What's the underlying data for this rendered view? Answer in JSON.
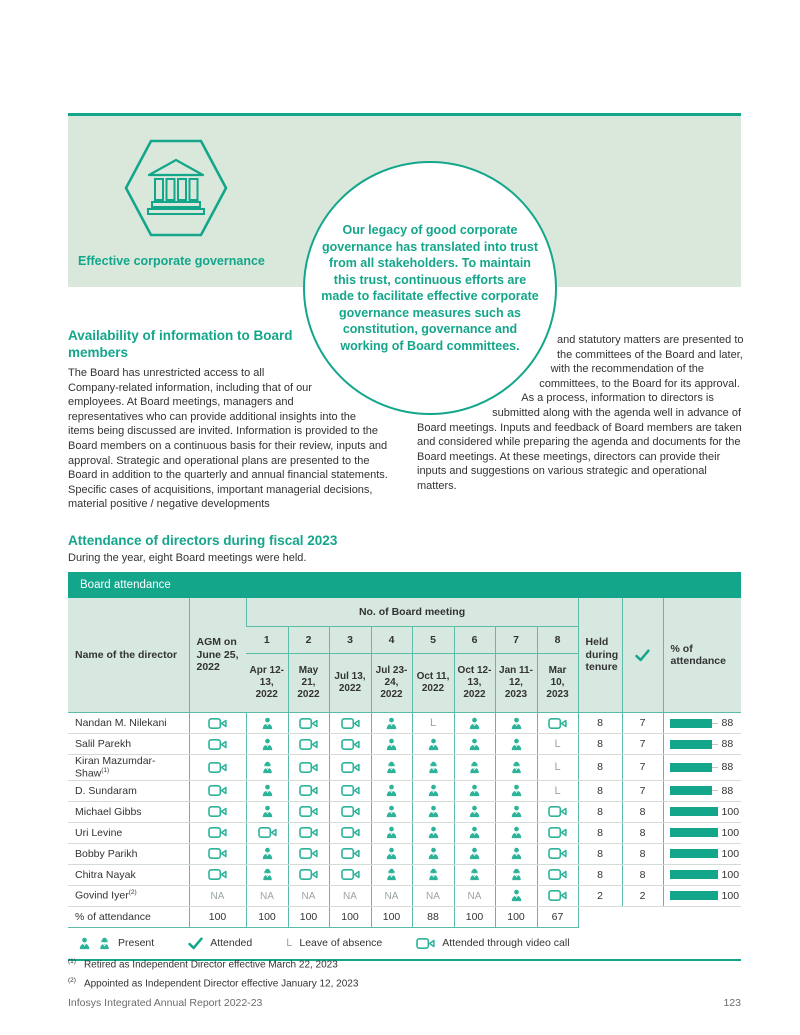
{
  "colors": {
    "accent": "#14a68b",
    "icon_teal": "#2cb39a",
    "banner_bg": "#d9e8db",
    "header_bg": "#d7e8e0",
    "line_teal": "#5dbca7",
    "row_line": "#d4dcd8",
    "gray_mark": "#9ba4a0",
    "text": "#333333",
    "muted": "#6b6b6b"
  },
  "banner": {
    "label": "Effective corporate governance",
    "icon": "bank-hexagon-icon"
  },
  "quote": "Our legacy of good corporate governance has translated into trust from all stakeholders. To maintain this trust, continuous efforts are made to facilitate effective corporate governance measures such as constitution, governance and working of Board committees.",
  "intro": {
    "heading": "Availability of information to Board members",
    "left_body": "The Board has unrestricted access to all Company-related information, including that of our employees. At Board meetings, managers and representatives who can provide additional insights into the items being discussed are invited. Information is provided to the Board members on a continuous basis for their review, inputs and approval. Strategic and operational plans are presented to the Board in addition to the quarterly and annual financial statements. Specific cases of acquisitions, important managerial decisions, material positive / negative developments",
    "right_body": "and statutory matters are presented to the committees of the Board and later, with the recommendation of the committees, to the Board for its approval. As a process, information to directors is submitted along with the agenda well in advance of Board meetings. Inputs and feedback of Board members are taken and considered while preparing the agenda and documents for the Board meetings. At these meetings, directors can provide their inputs and suggestions on various strategic and operational matters."
  },
  "section": {
    "heading": "Attendance of directors during fiscal 2023",
    "subtext": "During the year, eight Board meetings were held."
  },
  "table": {
    "title": "Board attendance",
    "headers": {
      "name": "Name of the director",
      "agm": "AGM on June 25, 2022",
      "meetings_group": "No. of Board meeting",
      "held": "Held during tenure",
      "attended_icon": "check-icon",
      "pct": "% of attendance"
    },
    "meeting_numbers": [
      "1",
      "2",
      "3",
      "4",
      "5",
      "6",
      "7",
      "8"
    ],
    "meeting_dates": [
      "Apr 12-13, 2022",
      "May 21, 2022",
      "Jul 13, 2022",
      "Jul 23-24, 2022",
      "Oct 11, 2022",
      "Oct 12-13, 2022",
      "Jan 11-12, 2023",
      "Mar 10, 2023"
    ],
    "rows": [
      {
        "name": "Nandan M. Nilekani",
        "sup": "",
        "cells": [
          "video",
          "male",
          "video",
          "video",
          "male",
          "L",
          "male",
          "male",
          "video"
        ],
        "held": "8",
        "attended": "7",
        "pct": 88
      },
      {
        "name": "Salil Parekh",
        "sup": "",
        "cells": [
          "video",
          "male",
          "video",
          "video",
          "male",
          "male",
          "male",
          "male",
          "L"
        ],
        "held": "8",
        "attended": "7",
        "pct": 88
      },
      {
        "name": "Kiran Mazumdar-Shaw",
        "sup": "(1)",
        "cells": [
          "video",
          "female",
          "video",
          "video",
          "female",
          "female",
          "female",
          "female",
          "L"
        ],
        "held": "8",
        "attended": "7",
        "pct": 88
      },
      {
        "name": "D. Sundaram",
        "sup": "",
        "cells": [
          "video",
          "male",
          "video",
          "video",
          "male",
          "male",
          "male",
          "male",
          "L"
        ],
        "held": "8",
        "attended": "7",
        "pct": 88
      },
      {
        "name": "Michael Gibbs",
        "sup": "",
        "cells": [
          "video",
          "male",
          "video",
          "video",
          "male",
          "male",
          "male",
          "male",
          "video"
        ],
        "held": "8",
        "attended": "8",
        "pct": 100
      },
      {
        "name": "Uri Levine",
        "sup": "",
        "cells": [
          "video",
          "video",
          "video",
          "video",
          "male",
          "male",
          "male",
          "male",
          "video"
        ],
        "held": "8",
        "attended": "8",
        "pct": 100
      },
      {
        "name": "Bobby Parikh",
        "sup": "",
        "cells": [
          "video",
          "male",
          "video",
          "video",
          "male",
          "male",
          "male",
          "male",
          "video"
        ],
        "held": "8",
        "attended": "8",
        "pct": 100
      },
      {
        "name": "Chitra Nayak",
        "sup": "",
        "cells": [
          "video",
          "female",
          "video",
          "video",
          "female",
          "female",
          "female",
          "female",
          "video"
        ],
        "held": "8",
        "attended": "8",
        "pct": 100
      },
      {
        "name": "Govind Iyer",
        "sup": "(2)",
        "cells": [
          "NA",
          "NA",
          "NA",
          "NA",
          "NA",
          "NA",
          "NA",
          "male",
          "video"
        ],
        "held": "2",
        "attended": "2",
        "pct": 100
      }
    ],
    "pct_row": {
      "label": "% of attendance",
      "values": [
        "100",
        "100",
        "100",
        "100",
        "100",
        "88",
        "100",
        "100",
        "67"
      ]
    },
    "legend": [
      {
        "icon": "present-pair",
        "label": "Present"
      },
      {
        "icon": "check",
        "label": "Attended"
      },
      {
        "icon": "L",
        "label": "Leave of absence"
      },
      {
        "icon": "video",
        "label": "Attended through video call"
      }
    ]
  },
  "footnotes": [
    {
      "sup": "(1)",
      "text": "Retired as Independent Director effective March 22, 2023"
    },
    {
      "sup": "(2)",
      "text": "Appointed as Independent Director effective January 12, 2023"
    }
  ],
  "footer": {
    "left": "Infosys Integrated Annual Report 2022-23",
    "page": "123"
  }
}
